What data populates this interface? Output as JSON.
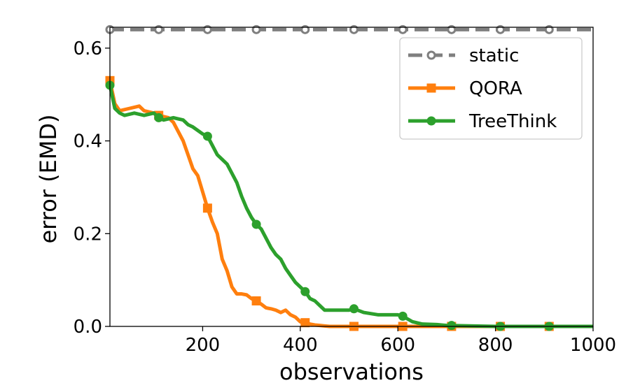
{
  "chart_data": {
    "type": "line",
    "xlabel": "observations",
    "ylabel": "error (EMD)",
    "xlim": [
      10,
      1000
    ],
    "ylim": [
      0,
      0.645
    ],
    "xticks": [
      200,
      400,
      600,
      800,
      1000
    ],
    "yticks": [
      0.0,
      0.2,
      0.4,
      0.6
    ],
    "xtick_labels": [
      "200",
      "400",
      "600",
      "800",
      "1000"
    ],
    "ytick_labels": [
      "0.0",
      "0.2",
      "0.4",
      "0.6"
    ],
    "grid": false,
    "legend_position": "top-right",
    "series": [
      {
        "name": "static",
        "color": "#7f7f7f",
        "linestyle": "dashed",
        "marker": "circle-open",
        "x": [
          10,
          1000
        ],
        "y": [
          0.64,
          0.64
        ],
        "markers_x": [
          10,
          110,
          210,
          310,
          410,
          510,
          610,
          710,
          810,
          910
        ],
        "markers_y": [
          0.64,
          0.64,
          0.64,
          0.64,
          0.64,
          0.64,
          0.64,
          0.64,
          0.64,
          0.64
        ]
      },
      {
        "name": "QORA",
        "color": "#ff7f0e",
        "linestyle": "solid",
        "marker": "square",
        "x": [
          10,
          20,
          30,
          50,
          70,
          80,
          100,
          110,
          130,
          140,
          150,
          160,
          170,
          180,
          190,
          200,
          210,
          220,
          230,
          240,
          250,
          260,
          270,
          280,
          290,
          300,
          310,
          320,
          330,
          340,
          350,
          360,
          370,
          380,
          390,
          400,
          410,
          420,
          430,
          440,
          450,
          460,
          480,
          500,
          520,
          550,
          600,
          610,
          630,
          700,
          800,
          900,
          1000
        ],
        "y": [
          0.53,
          0.48,
          0.465,
          0.47,
          0.475,
          0.465,
          0.46,
          0.455,
          0.45,
          0.44,
          0.42,
          0.4,
          0.37,
          0.34,
          0.325,
          0.29,
          0.255,
          0.225,
          0.2,
          0.145,
          0.12,
          0.085,
          0.07,
          0.07,
          0.068,
          0.06,
          0.055,
          0.048,
          0.04,
          0.038,
          0.035,
          0.03,
          0.035,
          0.025,
          0.02,
          0.01,
          0.008,
          0.005,
          0.003,
          0.002,
          0.001,
          0.0,
          0.0,
          0.0,
          0.0,
          0.0,
          0.0,
          0.0,
          0.0,
          0.0,
          0.0,
          0.0,
          0.0
        ],
        "markers_x": [
          10,
          110,
          210,
          310,
          410,
          510,
          610,
          710,
          810,
          910
        ],
        "markers_y": [
          0.53,
          0.455,
          0.255,
          0.055,
          0.008,
          0.0,
          0.0,
          0.0,
          0.0,
          0.0
        ]
      },
      {
        "name": "TreeThink",
        "color": "#2ca02c",
        "linestyle": "solid",
        "marker": "circle",
        "x": [
          10,
          20,
          30,
          40,
          60,
          80,
          100,
          110,
          120,
          140,
          160,
          170,
          180,
          200,
          210,
          220,
          230,
          240,
          250,
          260,
          270,
          280,
          290,
          300,
          310,
          320,
          330,
          340,
          350,
          360,
          370,
          380,
          390,
          400,
          410,
          420,
          430,
          440,
          450,
          460,
          480,
          500,
          510,
          530,
          560,
          600,
          610,
          630,
          650,
          680,
          700,
          800,
          900,
          1000
        ],
        "y": [
          0.52,
          0.47,
          0.46,
          0.455,
          0.46,
          0.455,
          0.46,
          0.45,
          0.445,
          0.45,
          0.445,
          0.435,
          0.43,
          0.415,
          0.41,
          0.39,
          0.37,
          0.36,
          0.35,
          0.33,
          0.31,
          0.28,
          0.255,
          0.235,
          0.22,
          0.21,
          0.19,
          0.17,
          0.155,
          0.145,
          0.125,
          0.11,
          0.095,
          0.085,
          0.075,
          0.06,
          0.055,
          0.045,
          0.035,
          0.035,
          0.035,
          0.035,
          0.038,
          0.03,
          0.025,
          0.025,
          0.022,
          0.01,
          0.005,
          0.004,
          0.002,
          0.0,
          0.0,
          0.0
        ],
        "markers_x": [
          10,
          110,
          210,
          310,
          410,
          510,
          610,
          710,
          810,
          910
        ],
        "markers_y": [
          0.52,
          0.45,
          0.41,
          0.22,
          0.075,
          0.038,
          0.022,
          0.002,
          0.0,
          0.0
        ]
      }
    ]
  }
}
